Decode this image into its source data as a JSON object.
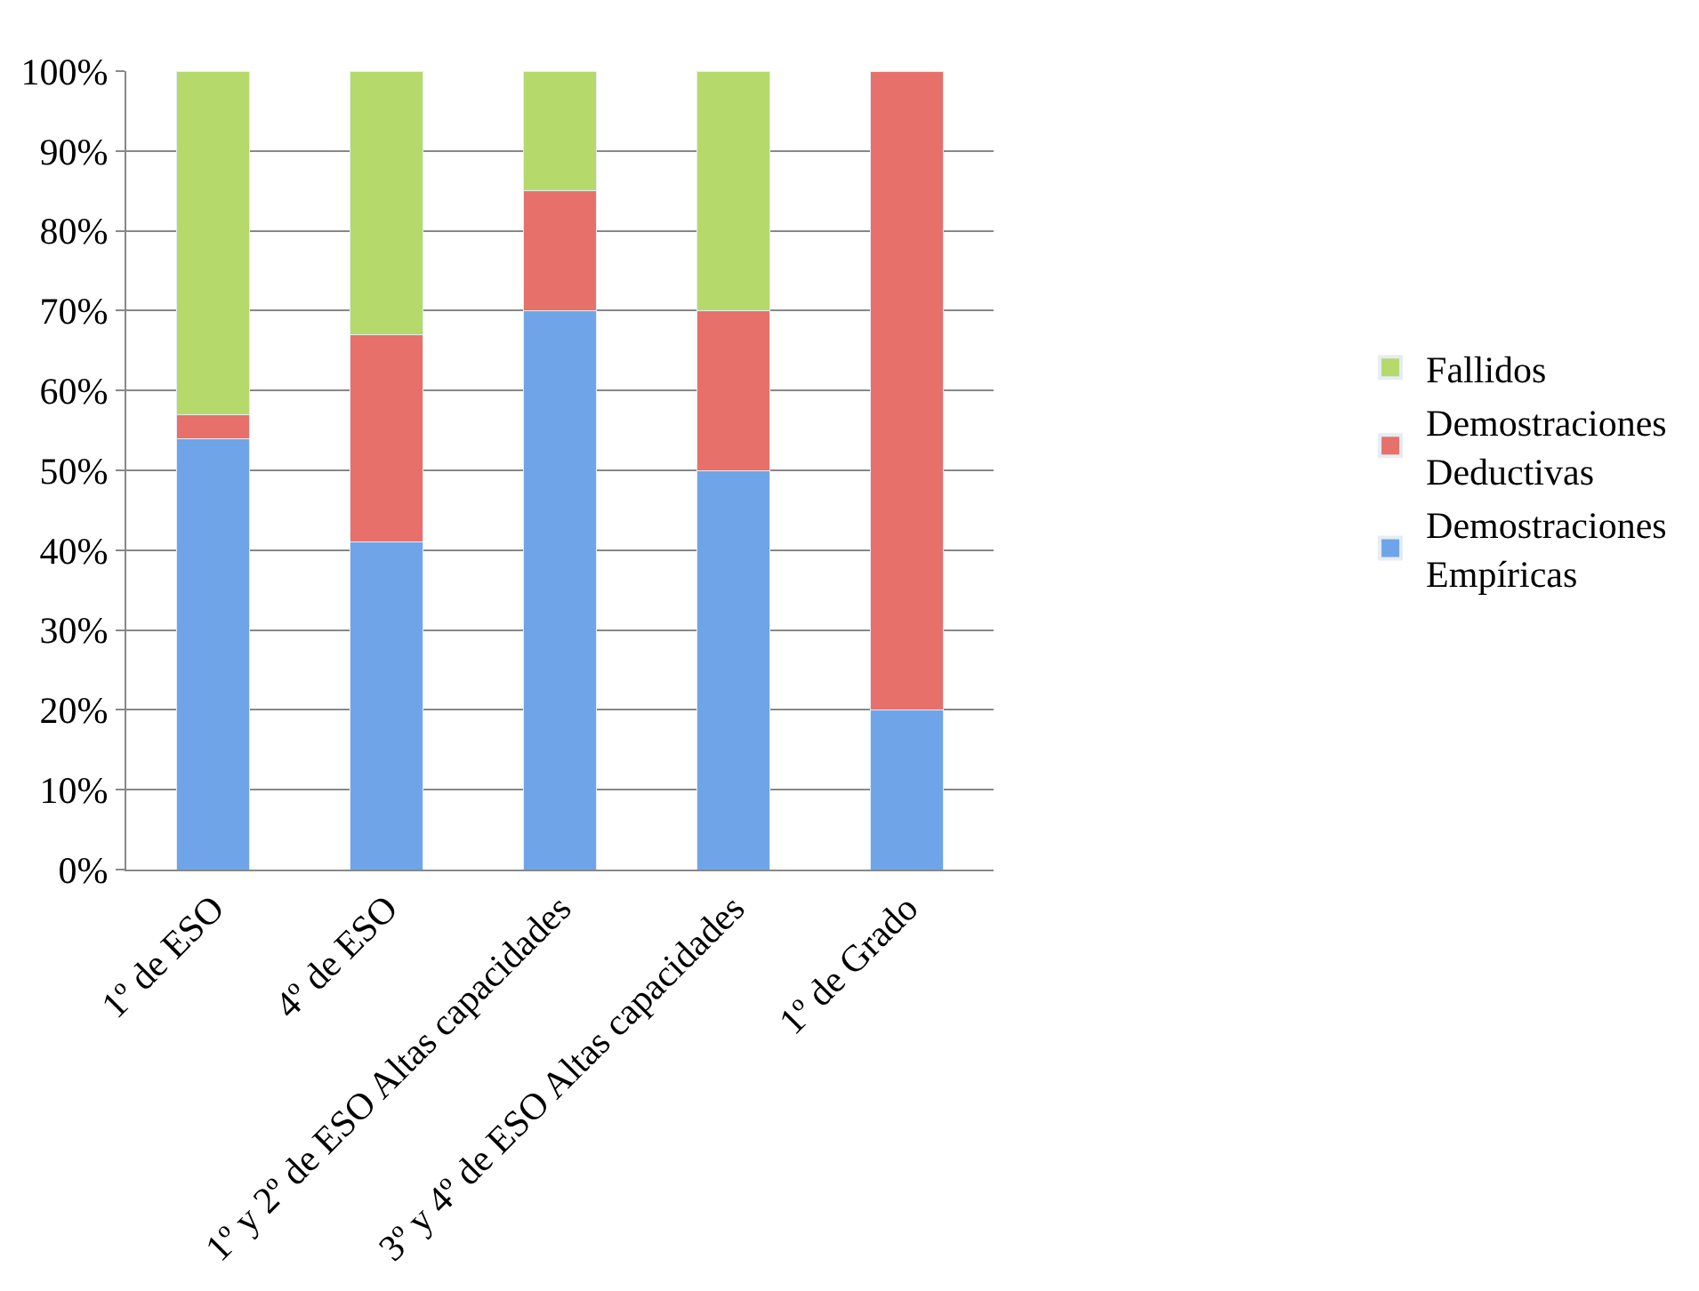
{
  "chart_data": {
    "type": "bar",
    "stacked": true,
    "categories": [
      "1º de ESO",
      "4º de ESO",
      "1º y 2º de ESO Altas capacidades",
      "3º y 4º de ESO Altas capacidades",
      "1º de Grado"
    ],
    "series": [
      {
        "name": "Demostraciones Empíricas",
        "color": "#6fa5e8",
        "values": [
          54,
          41,
          70,
          50,
          20
        ]
      },
      {
        "name": "Demostraciones Deductivas",
        "color": "#e8706a",
        "values": [
          3,
          26,
          15,
          20,
          80
        ]
      },
      {
        "name": "Fallidos",
        "color": "#b5d96a",
        "values": [
          43,
          33,
          15,
          30,
          null
        ]
      }
    ],
    "ylim": [
      0,
      100
    ],
    "yticks": [
      {
        "value": 0,
        "label": "0%"
      },
      {
        "value": 10,
        "label": "10%"
      },
      {
        "value": 20,
        "label": "20%"
      },
      {
        "value": 30,
        "label": "30%"
      },
      {
        "value": 40,
        "label": "40%"
      },
      {
        "value": 50,
        "label": "50%"
      },
      {
        "value": 60,
        "label": "60%"
      },
      {
        "value": 70,
        "label": "70%"
      },
      {
        "value": 80,
        "label": "80%"
      },
      {
        "value": 90,
        "label": "90%"
      },
      {
        "value": 100,
        "label": "100%"
      }
    ],
    "grid": "y",
    "legend": "right"
  }
}
